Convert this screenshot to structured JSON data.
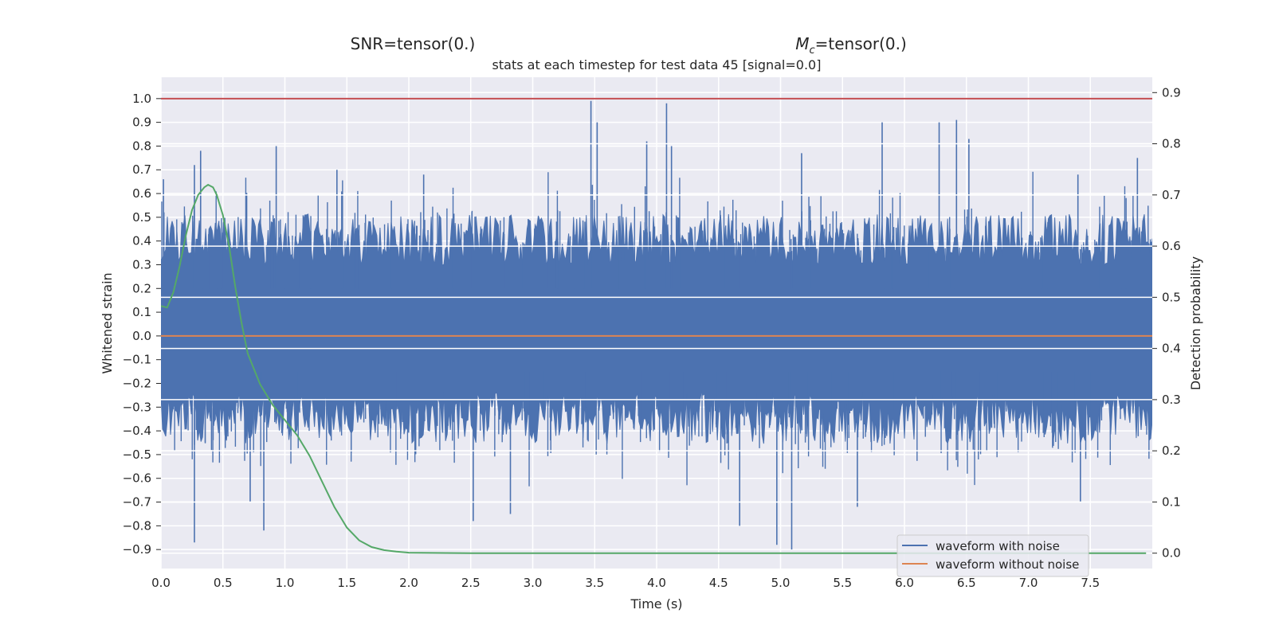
{
  "figure": {
    "top_left_text": "SNR=tensor(0.)",
    "top_right_text_main": "M",
    "top_right_text_sub": "c",
    "top_right_text_rest": "=tensor(0.)"
  },
  "chart_data": {
    "type": "line",
    "title": "stats at each timestep for test data 45 [signal=0.0]",
    "xlabel": "Time (s)",
    "ylabel": "Whitened strain",
    "ylabel_right": "Detection probability",
    "xlim": [
      0.0,
      8.0
    ],
    "ylim": [
      -0.98,
      1.09
    ],
    "ylim_right": [
      -0.03,
      0.93
    ],
    "x_ticks": [
      "0.0",
      "0.5",
      "1.0",
      "1.5",
      "2.0",
      "2.5",
      "3.0",
      "3.5",
      "4.0",
      "4.5",
      "5.0",
      "5.5",
      "6.0",
      "6.5",
      "7.0",
      "7.5"
    ],
    "y_ticks": [
      "1.0",
      "0.9",
      "0.8",
      "0.7",
      "0.6",
      "0.5",
      "0.4",
      "0.3",
      "0.2",
      "0.1",
      "0.0",
      "−0.1",
      "−0.2",
      "−0.3",
      "−0.4",
      "−0.5",
      "−0.6",
      "−0.7",
      "−0.8",
      "−0.9"
    ],
    "y_ticks_right": [
      "0.9",
      "0.8",
      "0.7",
      "0.6",
      "0.5",
      "0.4",
      "0.3",
      "0.2",
      "0.1",
      "0.0"
    ],
    "grid": true,
    "legend_position": "bottom-right",
    "legend": [
      "waveform with noise",
      "waveform without noise"
    ],
    "colors": {
      "noise": "#4c72b0",
      "clean": "#dd8452",
      "probability": "#55a868",
      "threshold": "#c44e52",
      "background": "#eaeaf2",
      "grid": "#ffffff"
    },
    "series": [
      {
        "name": "waveform with noise",
        "band_upper_typical": 0.36,
        "band_lower_typical": -0.3,
        "peaks_upper": [
          {
            "x": 0.02,
            "y": 0.66
          },
          {
            "x": 0.27,
            "y": 0.72
          },
          {
            "x": 0.32,
            "y": 0.78
          },
          {
            "x": 0.93,
            "y": 0.8
          },
          {
            "x": 1.42,
            "y": 0.7
          },
          {
            "x": 2.12,
            "y": 0.68
          },
          {
            "x": 3.47,
            "y": 0.99
          },
          {
            "x": 3.52,
            "y": 0.9
          },
          {
            "x": 3.92,
            "y": 0.82
          },
          {
            "x": 4.08,
            "y": 0.98
          },
          {
            "x": 4.12,
            "y": 0.8
          },
          {
            "x": 5.17,
            "y": 0.77
          },
          {
            "x": 5.82,
            "y": 0.9
          },
          {
            "x": 6.28,
            "y": 0.9
          },
          {
            "x": 6.42,
            "y": 0.91
          },
          {
            "x": 6.52,
            "y": 0.83
          },
          {
            "x": 7.4,
            "y": 0.68
          },
          {
            "x": 7.88,
            "y": 0.75
          }
        ],
        "peaks_lower": [
          {
            "x": 0.27,
            "y": -0.87
          },
          {
            "x": 0.72,
            "y": -0.7
          },
          {
            "x": 0.83,
            "y": -0.82
          },
          {
            "x": 2.52,
            "y": -0.78
          },
          {
            "x": 2.82,
            "y": -0.75
          },
          {
            "x": 4.67,
            "y": -0.8
          },
          {
            "x": 4.97,
            "y": -0.88
          },
          {
            "x": 5.09,
            "y": -0.9
          },
          {
            "x": 5.62,
            "y": -0.72
          },
          {
            "x": 7.42,
            "y": -0.7
          }
        ]
      },
      {
        "name": "waveform without noise",
        "x": [
          0.0,
          8.0
        ],
        "values": [
          0.0,
          0.0
        ]
      },
      {
        "axis": "right",
        "x": [
          0.0,
          0.05,
          0.1,
          0.15,
          0.2,
          0.25,
          0.3,
          0.35,
          0.38,
          0.42,
          0.45,
          0.5,
          0.55,
          0.6,
          0.65,
          0.7,
          0.8,
          0.9,
          1.0,
          1.1,
          1.2,
          1.3,
          1.4,
          1.5,
          1.6,
          1.7,
          1.8,
          1.9,
          2.0,
          2.5,
          3.0,
          4.0,
          5.0,
          6.0,
          7.0,
          7.95
        ],
        "values": [
          0.483,
          0.48,
          0.51,
          0.56,
          0.62,
          0.67,
          0.7,
          0.715,
          0.72,
          0.715,
          0.7,
          0.66,
          0.6,
          0.52,
          0.45,
          0.39,
          0.33,
          0.29,
          0.26,
          0.23,
          0.19,
          0.14,
          0.09,
          0.05,
          0.025,
          0.012,
          0.006,
          0.003,
          0.001,
          0.0,
          0.0,
          0.0,
          0.0,
          0.0,
          0.0,
          0.0
        ]
      }
    ],
    "threshold": {
      "y": 1.0
    }
  }
}
